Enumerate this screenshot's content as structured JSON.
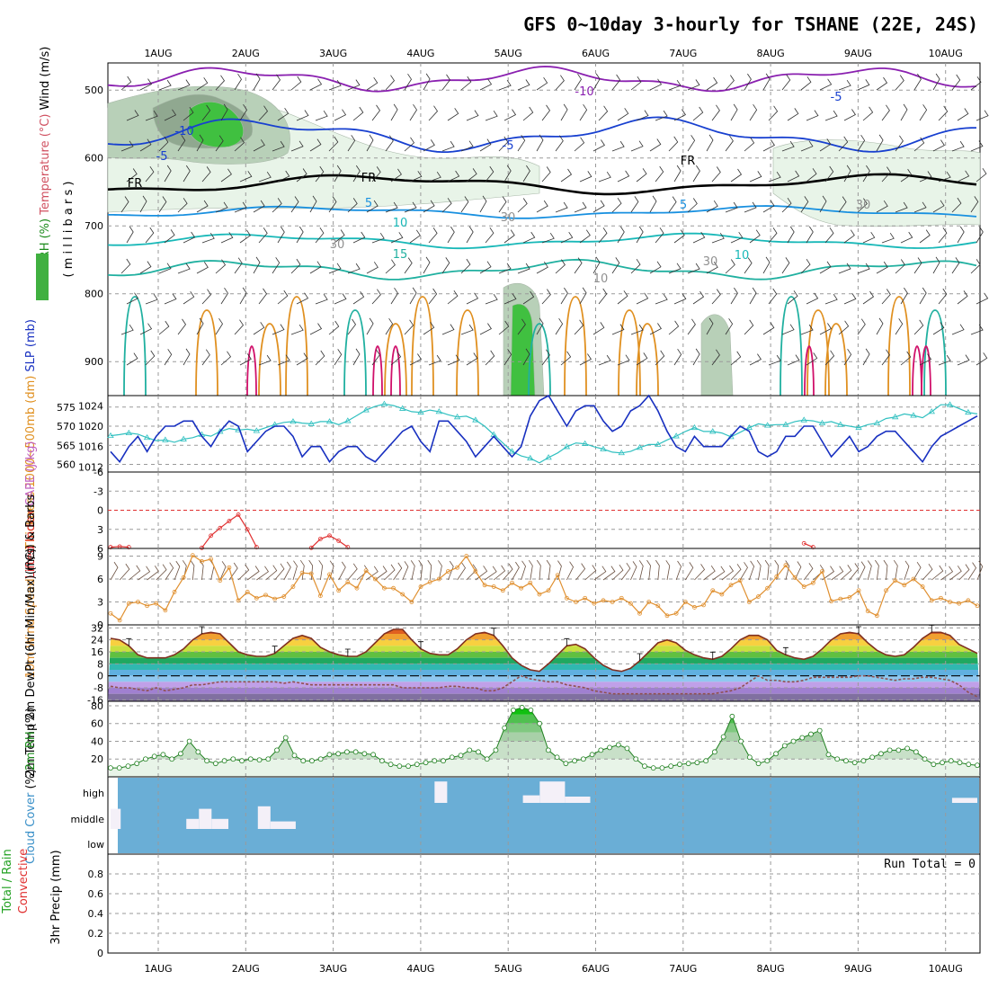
{
  "chart_data": {
    "type": "meteogram",
    "title": "GFS 0~10day 3-hourly for TSHANE (22E, 24S)",
    "dates": [
      "1AUG",
      "2AUG",
      "3AUG",
      "4AUG",
      "5AUG",
      "6AUG",
      "7AUG",
      "8AUG",
      "9AUG",
      "10AUG"
    ],
    "colors": {
      "grid": "#9a9a9a",
      "purple": "#8a20b0",
      "blue": "#1840d0",
      "lightblue": "#1890e0",
      "cyan": "#18b8b8",
      "teal": "#20b0a0",
      "orange": "#e09020",
      "magenta": "#d0106a",
      "rh_light": "#e8f4e8",
      "rh_mid": "#b8d0b8",
      "rh_dark": "#90a890",
      "rh_green": "#40c040",
      "slp": "#1830c0",
      "thick": "#30c0c0",
      "li": "#e03030",
      "wind10": "#e09030",
      "barb": "#6a5040",
      "dew": "#905050",
      "rh2m_line": "#208020",
      "cloud_bg": "#6aaed6",
      "cloud_fill": "#f4f0f8"
    },
    "panels": [
      {
        "id": "upper-air",
        "ylabel_parts": [
          {
            "text": "RH (%)",
            "color": "#1a8a1a"
          },
          {
            "text": "Temperature (°C)",
            "color": "#d05060"
          },
          {
            "text": "Wind (m/s)",
            "color": "#000000"
          }
        ],
        "yaxis_name": "( m i l l i b a r s )",
        "yticks": [
          "500",
          "600",
          "700",
          "800",
          "900"
        ],
        "ylim": [
          460,
          950
        ],
        "contour_labels": [
          {
            "text": "-10",
            "color": "#8a20b0"
          },
          {
            "text": "-10",
            "color": "#1840d0"
          },
          {
            "text": "-5",
            "color": "#1840d0"
          },
          {
            "text": "-5",
            "color": "#1840d0"
          },
          {
            "text": "-5",
            "color": "#1840d0"
          },
          {
            "text": "FR",
            "color": "#000000"
          },
          {
            "text": "FR",
            "color": "#000000"
          },
          {
            "text": "FR",
            "color": "#000000"
          },
          {
            "text": "5",
            "color": "#1890e0"
          },
          {
            "text": "5",
            "color": "#1890e0"
          },
          {
            "text": "10",
            "color": "#18b8b8"
          },
          {
            "text": "10",
            "color": "#18b8b8"
          },
          {
            "text": "15",
            "color": "#20b0a0"
          },
          {
            "text": "30",
            "color": "#909090"
          },
          {
            "text": "30",
            "color": "#909090"
          },
          {
            "text": "30",
            "color": "#909090"
          },
          {
            "text": "30",
            "color": "#909090"
          },
          {
            "text": "10",
            "color": "#909090"
          }
        ]
      },
      {
        "id": "thickness-slp",
        "ylabel_parts": [
          {
            "text": "Thickness 1000~500mb (dm)",
            "color": "#e09020"
          },
          {
            "text": "SLP (mb)",
            "color": "#1830c0"
          }
        ],
        "yticks_left": [
          "560",
          "565",
          "570",
          "575"
        ],
        "yticks_right": [
          "1012",
          "1016",
          "1020",
          "1024"
        ],
        "thickness_ylim": [
          558,
          578
        ],
        "slp_ylim": [
          1011,
          1026
        ],
        "slp": [
          1015,
          1013,
          1016,
          1018,
          1015,
          1018,
          1020,
          1020,
          1021,
          1021,
          1018,
          1016,
          1019,
          1021,
          1020,
          1015,
          1017,
          1019,
          1020,
          1020,
          1018,
          1014,
          1016,
          1016,
          1013,
          1015,
          1016,
          1016,
          1014,
          1013,
          1015,
          1017,
          1019,
          1020,
          1017,
          1015,
          1021,
          1021,
          1019,
          1017,
          1014,
          1016,
          1018,
          1016,
          1014,
          1016,
          1022,
          1025,
          1026,
          1023,
          1020,
          1023,
          1024,
          1024,
          1021,
          1019,
          1020,
          1023,
          1024,
          1026,
          1023,
          1019,
          1016,
          1015,
          1018,
          1016,
          1016,
          1016,
          1018,
          1020,
          1019,
          1015,
          1014,
          1015,
          1018,
          1018,
          1020,
          1020,
          1017,
          1014,
          1016,
          1018,
          1015,
          1016,
          1018,
          1019,
          1019,
          1017,
          1015,
          1013,
          1016,
          1018,
          1019,
          1020,
          1021,
          1022
        ],
        "thickness": [
          567.5,
          567.8,
          568.2,
          567.9,
          567,
          566.2,
          566.4,
          565.8,
          566.6,
          567,
          567.8,
          567.4,
          568.6,
          569.4,
          569,
          569.2,
          568.8,
          569.6,
          570.4,
          571,
          571.2,
          570.8,
          570.6,
          571.2,
          571.2,
          570.4,
          571.4,
          572.8,
          574.2,
          575.2,
          575.8,
          575.4,
          574.6,
          573.8,
          573.6,
          574.2,
          573.8,
          573,
          572.4,
          572.6,
          571.6,
          570,
          567.8,
          565.6,
          563.4,
          562.2,
          561.6,
          560.4,
          561.8,
          563,
          564.6,
          565.6,
          565.4,
          564.6,
          564,
          563.2,
          563,
          563.4,
          564.4,
          565.2,
          565.2,
          566.4,
          567.4,
          568.6,
          569.6,
          568.6,
          568.6,
          568.2,
          567.2,
          568.4,
          569.6,
          570.6,
          570.2,
          570.4,
          570.4,
          571.2,
          571.6,
          571.4,
          570.8,
          571.2,
          570.4,
          570,
          569.6,
          570.4,
          570.8,
          572,
          572.4,
          573.2,
          572.8,
          572.2,
          573.8,
          575.6,
          575.6,
          574.6,
          573.6,
          573.2
        ]
      },
      {
        "id": "lifted-index",
        "ylabel_parts": [
          {
            "text": "Lifted Index",
            "color": "#e03030"
          },
          {
            "text": "CAPE (J/kg)",
            "color": "#c060c0"
          }
        ],
        "yticks": [
          "6",
          "3",
          "0",
          "-3",
          "-6"
        ],
        "ylim": [
          -6,
          6
        ],
        "li_segments": [
          {
            "start": 0,
            "values": [
              5.8,
              5.7,
              5.8
            ]
          },
          {
            "start": 10,
            "values": [
              5.9,
              4,
              2.8,
              1.7,
              0.7,
              3,
              5.8
            ]
          },
          {
            "start": 22,
            "values": [
              5.9,
              4.5,
              4,
              4.8,
              5.8
            ]
          },
          {
            "start": 76,
            "values": [
              5.2,
              5.8
            ]
          }
        ]
      },
      {
        "id": "wind10m",
        "ylabel_parts": [
          {
            "text": "10m Wind",
            "color": "#e09030"
          },
          {
            "text": "Speed",
            "color": "#e09030"
          },
          {
            "text": "(m/s) & Barbs",
            "color": "#000000"
          }
        ],
        "yticks": [
          "0",
          "3",
          "6",
          "9"
        ],
        "ylim": [
          0,
          10
        ],
        "speed": [
          1.5,
          0.6,
          2.8,
          3,
          2.5,
          2.8,
          1.9,
          4.3,
          6.2,
          9.1,
          8.3,
          8.6,
          5.8,
          7.5,
          3.2,
          4.3,
          3.5,
          3.9,
          3.4,
          3.7,
          5,
          6.8,
          6.7,
          3.8,
          6.6,
          4.5,
          5.6,
          4.8,
          7.1,
          6,
          4.8,
          4.8,
          4,
          3,
          5,
          5.6,
          6,
          7,
          7.5,
          9,
          7,
          5.2,
          5,
          4.5,
          5.5,
          4.8,
          5.5,
          4,
          4.5,
          6.5,
          3.5,
          3,
          3.5,
          2.8,
          3.2,
          3,
          3.5,
          2.8,
          1.5,
          3,
          2.5,
          1.2,
          1.5,
          3,
          2.3,
          2.6,
          4.5,
          4,
          5.2,
          5.8,
          3,
          3.7,
          4.8,
          6.3,
          7.8,
          6.2,
          5,
          5.5,
          7,
          3.1,
          3.4,
          3.6,
          4.5,
          1.8,
          1.2,
          4.5,
          5.8,
          5.2,
          6,
          5,
          3.2,
          3.5,
          3,
          2.8,
          3.2,
          2.5
        ]
      },
      {
        "id": "temp2m",
        "ylabel_parts": [
          {
            "text": "2m Temp",
            "color": "#000000"
          },
          {
            "text": "2m DewPt",
            "color": "#000000"
          },
          {
            "text": "(6hr Min/Max) (°C)",
            "color": "#000000"
          }
        ],
        "yticks": [
          "-16",
          "-8",
          "0",
          "8",
          "16",
          "24",
          "32"
        ],
        "ylim": [
          -17,
          34
        ],
        "temp": [
          25,
          24,
          20,
          14,
          12,
          12,
          12,
          14,
          18,
          24,
          28,
          29,
          28,
          22,
          16,
          14,
          13,
          13,
          15,
          20,
          25,
          27,
          25,
          19,
          16,
          14,
          13,
          13,
          16,
          22,
          28,
          31,
          31,
          24,
          18,
          15,
          14,
          14,
          18,
          24,
          28,
          29,
          27,
          20,
          12,
          7,
          4,
          3,
          8,
          14,
          20,
          21,
          18,
          12,
          7,
          4,
          3,
          5,
          10,
          16,
          22,
          24,
          22,
          17,
          14,
          12,
          11,
          13,
          18,
          24,
          27,
          27,
          24,
          17,
          14,
          12,
          11,
          13,
          18,
          24,
          28,
          29,
          28,
          22,
          17,
          14,
          13,
          14,
          19,
          25,
          29,
          29,
          27,
          21,
          18,
          15
        ],
        "dewpt": [
          -7,
          -8,
          -8,
          -9,
          -10,
          -8,
          -10,
          -9,
          -8,
          -6,
          -6,
          -5,
          -4,
          -4,
          -4,
          -4,
          -4,
          -4,
          -4,
          -5,
          -4,
          -5,
          -6,
          -6,
          -6,
          -6,
          -6,
          -6,
          -6,
          -6,
          -6,
          -6,
          -8,
          -8,
          -8,
          -8,
          -8,
          -7,
          -7,
          -8,
          -8,
          -10,
          -10,
          -8,
          -4,
          0,
          -2,
          -3,
          -4,
          -4,
          -6,
          -7,
          -8,
          -10,
          -11,
          -12,
          -12,
          -12,
          -12,
          -12,
          -12,
          -12,
          -12,
          -12,
          -12,
          -12,
          -12,
          -11,
          -10,
          -8,
          -4,
          0,
          -3,
          -3,
          -4,
          -4,
          -3,
          -1,
          -1,
          -1,
          -1,
          -1,
          0,
          0,
          -1,
          -2,
          -3,
          -2,
          -2,
          -1,
          -1,
          -2,
          -3,
          -6,
          -11,
          -14
        ]
      },
      {
        "id": "rh2m",
        "ylabel_parts": [
          {
            "text": "2m RH",
            "color": "#1a8a1a"
          },
          {
            "text": "(%)",
            "color": "#000000"
          }
        ],
        "yticks": [
          "20",
          "40",
          "60",
          "80"
        ],
        "ylim": [
          0,
          85
        ],
        "rh": [
          10,
          10,
          12,
          15,
          20,
          23,
          25,
          20,
          26,
          40,
          28,
          18,
          15,
          18,
          20,
          18,
          20,
          19,
          20,
          30,
          44,
          24,
          18,
          18,
          20,
          25,
          26,
          28,
          28,
          26,
          25,
          18,
          14,
          12,
          12,
          14,
          16,
          18,
          18,
          22,
          24,
          30,
          28,
          20,
          30,
          55,
          75,
          78,
          75,
          60,
          30,
          22,
          15,
          18,
          20,
          25,
          30,
          33,
          36,
          32,
          20,
          12,
          10,
          10,
          12,
          14,
          15,
          16,
          18,
          28,
          45,
          68,
          40,
          22,
          15,
          18,
          26,
          35,
          40,
          44,
          48,
          52,
          25,
          20,
          18,
          16,
          18,
          22,
          26,
          30,
          30,
          32,
          28,
          20,
          14,
          16,
          18,
          16,
          14,
          13
        ],
        "rh_dots": 100
      },
      {
        "id": "cloud",
        "ylabel_parts": [
          {
            "text": "Cloud Cover",
            "color": "#3a90c8"
          },
          {
            "text": "(%)",
            "color": "#000000"
          }
        ],
        "yticks": [
          "high",
          "middle",
          "low"
        ],
        "blocks": [
          {
            "layer": "middle",
            "start": 0,
            "end": 1.2,
            "amount": 0.8
          },
          {
            "layer": "middle",
            "start": 9,
            "end": 10.5,
            "amount": 0.4
          },
          {
            "layer": "middle",
            "start": 10.5,
            "end": 12,
            "amount": 0.8
          },
          {
            "layer": "middle",
            "start": 12,
            "end": 14,
            "amount": 0.4
          },
          {
            "layer": "middle",
            "start": 17.5,
            "end": 19,
            "amount": 0.9
          },
          {
            "layer": "middle",
            "start": 19,
            "end": 22,
            "amount": 0.3
          },
          {
            "layer": "high",
            "start": 38.5,
            "end": 40,
            "amount": 0.85
          },
          {
            "layer": "high",
            "start": 49,
            "end": 51,
            "amount": 0.3
          },
          {
            "layer": "high",
            "start": 51,
            "end": 54,
            "amount": 0.85
          },
          {
            "layer": "high",
            "start": 54,
            "end": 57,
            "amount": 0.25
          },
          {
            "layer": "high",
            "start": 100,
            "end": 103,
            "amount": 0.2
          }
        ]
      },
      {
        "id": "precip",
        "ylabel_parts": [
          {
            "text": "Total / Rain",
            "color": "#20a020"
          },
          {
            "text": "Convective",
            "color": "#e03030"
          },
          {
            "text": "3hr Precip (mm)",
            "color": "#000000"
          }
        ],
        "yticks": [
          "0",
          "0.2",
          "0.4",
          "0.6",
          "0.8"
        ],
        "ylim": [
          0,
          1.0
        ],
        "run_total": "Run Total = 0"
      }
    ]
  }
}
